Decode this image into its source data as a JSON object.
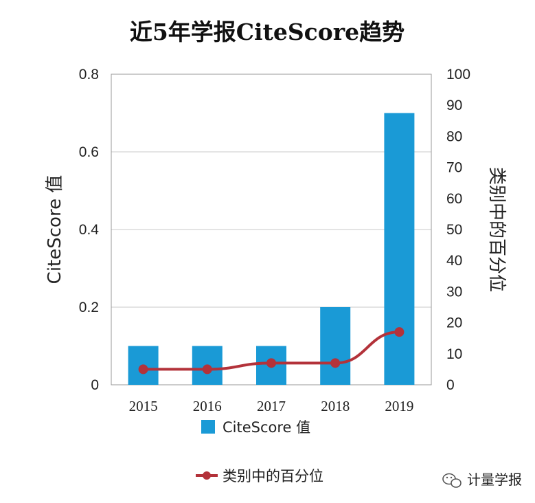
{
  "chart_data": {
    "type": "bar",
    "title": "近5年学报CiteScore趋势",
    "categories": [
      "2015",
      "2016",
      "2017",
      "2018",
      "2019"
    ],
    "series": [
      {
        "name": "CiteScore 值",
        "kind": "bar",
        "axis": "left",
        "color": "#1a9ad6",
        "values": [
          0.1,
          0.1,
          0.1,
          0.2,
          0.7
        ]
      },
      {
        "name": "类别中的百分位",
        "kind": "line",
        "axis": "right",
        "color": "#b3323a",
        "values": [
          5,
          5,
          7,
          7,
          17
        ]
      }
    ],
    "ylabel": "CiteScore 值",
    "ylabel_right": "类别中的百分位",
    "ylim": [
      0,
      0.8
    ],
    "ylim_right": [
      0,
      100
    ],
    "yticks": [
      "0",
      "0.2",
      "0.4",
      "0.6",
      "0.8"
    ],
    "yticks_right": [
      "0",
      "10",
      "20",
      "30",
      "40",
      "50",
      "60",
      "70",
      "80",
      "90",
      "100"
    ],
    "grid": true,
    "legend_position": "bottom"
  },
  "watermark": {
    "text": "计量学报",
    "icon": "wechat-icon"
  }
}
